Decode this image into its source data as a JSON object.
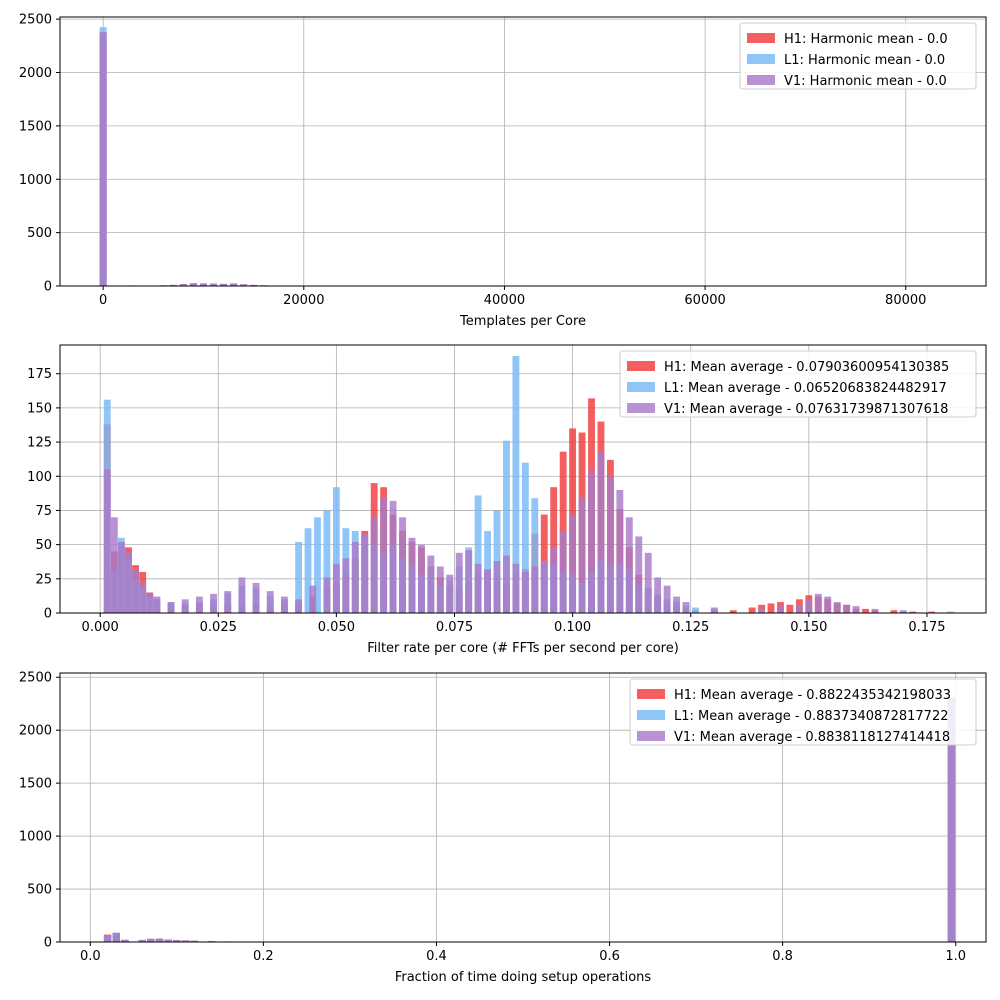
{
  "chart_data": [
    {
      "type": "histogram",
      "xlabel": "Templates per Core",
      "ylabel": "",
      "xlim": [
        -4300,
        88000
      ],
      "ylim": [
        0,
        2520
      ],
      "xticks": [
        0,
        20000,
        40000,
        60000,
        80000
      ],
      "yticks": [
        0,
        500,
        1000,
        1500,
        2000,
        2500
      ],
      "grid": true,
      "legend_position": "top-right",
      "bin_width": 700,
      "series": [
        {
          "name": "H1: Harmonic mean  - 0.0",
          "color": "#f03c3c",
          "x": [
            0,
            3000,
            6000,
            7000,
            8000,
            9000,
            10000,
            11000,
            12000,
            13000,
            14000,
            15000,
            16000,
            17000
          ],
          "values": [
            2380,
            5,
            6,
            10,
            18,
            26,
            24,
            22,
            18,
            24,
            16,
            10,
            6,
            3
          ]
        },
        {
          "name": "L1: Harmonic mean  - 0.0",
          "color": "#78b9f5",
          "x": [
            0,
            3000,
            6000,
            7000,
            8000,
            9000,
            10000,
            11000,
            12000,
            13000,
            14000,
            15000,
            16000,
            17000
          ],
          "values": [
            2425,
            5,
            6,
            10,
            16,
            26,
            22,
            20,
            20,
            22,
            14,
            10,
            6,
            3
          ]
        },
        {
          "name": "V1: Harmonic mean  - 0.0",
          "color": "#a87ac8",
          "x": [
            0,
            3000,
            6000,
            7000,
            8000,
            9000,
            10000,
            11000,
            12000,
            13000,
            14000,
            15000,
            16000,
            17000
          ],
          "values": [
            2375,
            5,
            6,
            10,
            18,
            26,
            24,
            22,
            20,
            24,
            16,
            10,
            6,
            3
          ]
        }
      ]
    },
    {
      "type": "histogram",
      "xlabel": "Filter rate per core (# FFTs per second per core)",
      "ylabel": "",
      "xlim": [
        -0.0085,
        0.1875
      ],
      "ylim": [
        0,
        196
      ],
      "xticks": [
        0.0,
        0.025,
        0.05,
        0.075,
        0.1,
        0.125,
        0.15,
        0.175
      ],
      "yticks": [
        0,
        25,
        50,
        75,
        100,
        125,
        150,
        175
      ],
      "grid": true,
      "legend_position": "top-right",
      "bin_width": 0.00145,
      "series": [
        {
          "name": "H1: Mean average - 0.07903600954130385",
          "color": "#f03c3c",
          "x": [
            0.0015,
            0.003,
            0.0045,
            0.006,
            0.0075,
            0.009,
            0.0105,
            0.012,
            0.015,
            0.018,
            0.021,
            0.024,
            0.027,
            0.03,
            0.033,
            0.036,
            0.039,
            0.042,
            0.045,
            0.048,
            0.05,
            0.052,
            0.054,
            0.056,
            0.058,
            0.06,
            0.062,
            0.064,
            0.066,
            0.068,
            0.07,
            0.072,
            0.074,
            0.076,
            0.078,
            0.08,
            0.082,
            0.084,
            0.086,
            0.088,
            0.09,
            0.092,
            0.094,
            0.096,
            0.098,
            0.1,
            0.102,
            0.104,
            0.106,
            0.108,
            0.11,
            0.112,
            0.114,
            0.116,
            0.118,
            0.12,
            0.122,
            0.124,
            0.126,
            0.13,
            0.134,
            0.138,
            0.14,
            0.142,
            0.144,
            0.146,
            0.148,
            0.15,
            0.152,
            0.154,
            0.156,
            0.158,
            0.16,
            0.162,
            0.164,
            0.168,
            0.172,
            0.176
          ],
          "values": [
            138,
            45,
            50,
            48,
            35,
            30,
            15,
            10,
            6,
            5,
            7,
            6,
            6,
            5,
            6,
            5,
            6,
            7,
            12,
            18,
            22,
            28,
            40,
            60,
            95,
            92,
            72,
            60,
            52,
            48,
            34,
            26,
            20,
            18,
            22,
            28,
            30,
            25,
            22,
            28,
            32,
            58,
            72,
            92,
            118,
            135,
            132,
            157,
            140,
            112,
            76,
            48,
            28,
            18,
            12,
            8,
            5,
            3,
            2,
            2,
            2,
            4,
            6,
            7,
            8,
            6,
            10,
            13,
            12,
            10,
            7,
            6,
            3,
            3,
            2,
            2,
            1,
            1
          ]
        },
        {
          "name": "L1: Mean average - 0.06520683824482917",
          "color": "#78b9f5",
          "x": [
            0.0015,
            0.003,
            0.0045,
            0.006,
            0.0075,
            0.009,
            0.0105,
            0.012,
            0.015,
            0.018,
            0.021,
            0.024,
            0.027,
            0.03,
            0.033,
            0.036,
            0.039,
            0.042,
            0.044,
            0.046,
            0.048,
            0.05,
            0.052,
            0.054,
            0.056,
            0.058,
            0.06,
            0.062,
            0.064,
            0.066,
            0.068,
            0.07,
            0.072,
            0.074,
            0.076,
            0.078,
            0.08,
            0.082,
            0.084,
            0.086,
            0.088,
            0.09,
            0.092,
            0.094,
            0.096,
            0.098,
            0.1,
            0.102,
            0.104,
            0.106,
            0.108,
            0.11,
            0.112,
            0.114,
            0.116,
            0.118,
            0.12,
            0.122,
            0.124,
            0.126,
            0.13,
            0.14,
            0.15,
            0.16,
            0.17,
            0.18
          ],
          "values": [
            156,
            30,
            55,
            40,
            25,
            18,
            12,
            10,
            8,
            7,
            8,
            10,
            14,
            20,
            18,
            12,
            10,
            52,
            62,
            70,
            75,
            92,
            62,
            60,
            55,
            50,
            44,
            50,
            40,
            35,
            28,
            32,
            20,
            24,
            34,
            48,
            86,
            60,
            75,
            126,
            188,
            110,
            84,
            38,
            35,
            30,
            28,
            22,
            30,
            40,
            34,
            36,
            32,
            20,
            18,
            14,
            10,
            8,
            5,
            4,
            3,
            2,
            2,
            1,
            1,
            1
          ]
        },
        {
          "name": "V1: Mean average - 0.07631739871307618",
          "color": "#a87ac8",
          "x": [
            0.0015,
            0.003,
            0.0045,
            0.006,
            0.0075,
            0.009,
            0.0105,
            0.012,
            0.015,
            0.018,
            0.021,
            0.024,
            0.027,
            0.03,
            0.033,
            0.036,
            0.039,
            0.042,
            0.045,
            0.048,
            0.05,
            0.052,
            0.054,
            0.056,
            0.058,
            0.06,
            0.062,
            0.064,
            0.066,
            0.068,
            0.07,
            0.072,
            0.074,
            0.076,
            0.078,
            0.08,
            0.082,
            0.084,
            0.086,
            0.088,
            0.09,
            0.092,
            0.094,
            0.096,
            0.098,
            0.1,
            0.102,
            0.104,
            0.106,
            0.108,
            0.11,
            0.112,
            0.114,
            0.116,
            0.118,
            0.12,
            0.122,
            0.124,
            0.13,
            0.14,
            0.144,
            0.148,
            0.15,
            0.152,
            0.154,
            0.156,
            0.158,
            0.16,
            0.164,
            0.17
          ],
          "values": [
            105,
            70,
            52,
            45,
            32,
            22,
            14,
            12,
            8,
            10,
            12,
            14,
            16,
            26,
            22,
            16,
            12,
            10,
            20,
            26,
            36,
            40,
            52,
            58,
            70,
            84,
            82,
            70,
            55,
            50,
            42,
            34,
            28,
            44,
            46,
            36,
            32,
            38,
            42,
            36,
            30,
            34,
            38,
            48,
            60,
            72,
            84,
            104,
            118,
            100,
            90,
            70,
            56,
            44,
            26,
            20,
            12,
            8,
            4,
            3,
            5,
            6,
            10,
            14,
            12,
            8,
            6,
            5,
            3,
            2
          ]
        }
      ]
    },
    {
      "type": "histogram",
      "xlabel": "Fraction of time doing setup operations",
      "ylabel": "",
      "xlim": [
        -0.035,
        1.035
      ],
      "ylim": [
        0,
        2540
      ],
      "xticks": [
        0.0,
        0.2,
        0.4,
        0.6,
        0.8,
        1.0
      ],
      "yticks": [
        0,
        500,
        1000,
        1500,
        2000,
        2500
      ],
      "grid": true,
      "legend_position": "top-right",
      "bin_width": 0.0086,
      "series": [
        {
          "name": "H1: Mean average - 0.8822435342198033",
          "color": "#f03c3c",
          "x": [
            0.02,
            0.03,
            0.04,
            0.06,
            0.07,
            0.08,
            0.09,
            0.1,
            0.11,
            0.12,
            0.14,
            0.16,
            0.19,
            0.995
          ],
          "values": [
            70,
            80,
            20,
            18,
            30,
            32,
            22,
            18,
            16,
            12,
            8,
            5,
            3,
            2290
          ]
        },
        {
          "name": "L1: Mean average - 0.8837340872817722",
          "color": "#78b9f5",
          "x": [
            0.02,
            0.03,
            0.04,
            0.06,
            0.07,
            0.08,
            0.09,
            0.1,
            0.11,
            0.12,
            0.14,
            0.16,
            0.19,
            0.995
          ],
          "values": [
            60,
            90,
            18,
            20,
            28,
            30,
            24,
            20,
            14,
            12,
            8,
            5,
            3,
            2300
          ]
        },
        {
          "name": "V1: Mean average - 0.8838118127414418",
          "color": "#a87ac8",
          "x": [
            0.02,
            0.03,
            0.04,
            0.06,
            0.07,
            0.08,
            0.09,
            0.1,
            0.11,
            0.12,
            0.14,
            0.16,
            0.19,
            0.995
          ],
          "values": [
            65,
            85,
            22,
            20,
            30,
            32,
            22,
            18,
            16,
            12,
            8,
            5,
            3,
            2310
          ]
        }
      ]
    }
  ]
}
